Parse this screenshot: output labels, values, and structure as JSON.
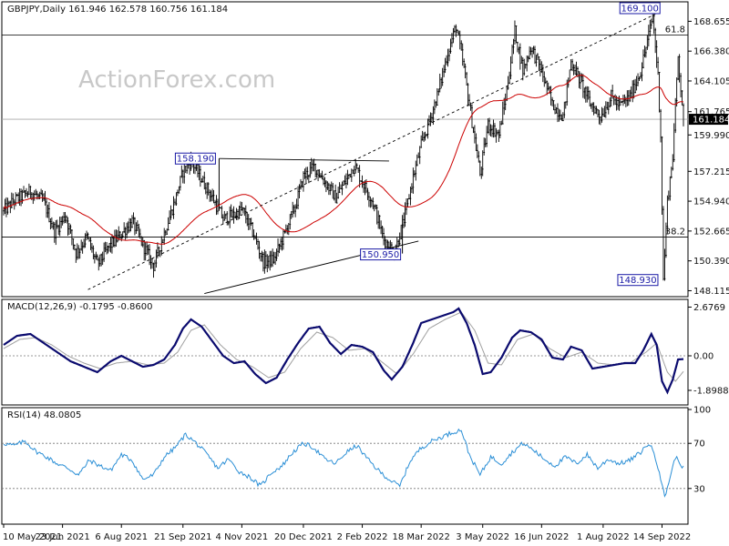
{
  "chart_data": [
    {
      "type": "candlestick",
      "title": "GBPJPY,Daily",
      "ohlc_readout": "161.946 162.578 160.756 161.184",
      "watermark": "ActionForex.com",
      "y_ticks": [
        "168.655",
        "166.380",
        "164.105",
        "161.765",
        "159.990",
        "157.215",
        "154.940",
        "152.665",
        "150.390",
        "148.115"
      ],
      "y_tick_values": [
        168.655,
        166.38,
        164.105,
        161.765,
        159.99,
        157.215,
        154.94,
        152.665,
        150.39,
        148.115
      ],
      "ylim": [
        147.8,
        170.0
      ],
      "last_price": {
        "label": "161.184",
        "value": 161.184
      },
      "x_ticks": [
        "10 May 2021",
        "23 Jun 2021",
        "6 Aug 2021",
        "21 Sep 2021",
        "4 Nov 2021",
        "20 Dec 2021",
        "2 Feb 2022",
        "18 Mar 2022",
        "3 May 2022",
        "16 Jun 2022",
        "1 Aug 2022",
        "14 Sep 2022"
      ],
      "x_tick_days": [
        0,
        44,
        88,
        134,
        178,
        224,
        268,
        312,
        358,
        402,
        448,
        492
      ],
      "x_range_days": [
        0,
        508
      ],
      "fib_levels": [
        {
          "label": "61.8",
          "value": 167.6
        },
        {
          "label": "38.2",
          "value": 152.2
        }
      ],
      "annotations": [
        {
          "label": "169.100",
          "day": 485,
          "value": 169.1
        },
        {
          "label": "158.190",
          "day": 161,
          "value": 158.19
        },
        {
          "label": "150.950",
          "day": 298,
          "value": 150.95
        },
        {
          "label": "148.930",
          "day": 493,
          "value": 148.93
        }
      ],
      "ma_series_name": "",
      "keypoints": [
        [
          0,
          154.2
        ],
        [
          8,
          155.0
        ],
        [
          20,
          155.7
        ],
        [
          30,
          154.9
        ],
        [
          38,
          152.6
        ],
        [
          46,
          153.9
        ],
        [
          54,
          151.0
        ],
        [
          62,
          152.2
        ],
        [
          70,
          150.1
        ],
        [
          78,
          151.4
        ],
        [
          88,
          152.5
        ],
        [
          96,
          153.4
        ],
        [
          104,
          151.6
        ],
        [
          112,
          150.0
        ],
        [
          120,
          152.5
        ],
        [
          128,
          155.0
        ],
        [
          134,
          157.2
        ],
        [
          140,
          158.0
        ],
        [
          148,
          156.6
        ],
        [
          156,
          155.2
        ],
        [
          164,
          153.6
        ],
        [
          172,
          153.9
        ],
        [
          178,
          154.3
        ],
        [
          186,
          152.6
        ],
        [
          194,
          150.3
        ],
        [
          202,
          150.5
        ],
        [
          210,
          152.5
        ],
        [
          218,
          154.6
        ],
        [
          224,
          156.8
        ],
        [
          232,
          157.6
        ],
        [
          240,
          156.4
        ],
        [
          248,
          155.2
        ],
        [
          256,
          156.6
        ],
        [
          262,
          157.7
        ],
        [
          268,
          156.4
        ],
        [
          276,
          154.8
        ],
        [
          284,
          152.0
        ],
        [
          292,
          151.0
        ],
        [
          300,
          153.9
        ],
        [
          306,
          156.8
        ],
        [
          312,
          159.2
        ],
        [
          318,
          161.0
        ],
        [
          324,
          163.0
        ],
        [
          332,
          166.3
        ],
        [
          338,
          168.3
        ],
        [
          344,
          165.0
        ],
        [
          350,
          161.0
        ],
        [
          356,
          157.0
        ],
        [
          362,
          160.8
        ],
        [
          370,
          160.0
        ],
        [
          376,
          163.4
        ],
        [
          382,
          167.9
        ],
        [
          388,
          164.9
        ],
        [
          394,
          166.7
        ],
        [
          402,
          164.8
        ],
        [
          410,
          162.3
        ],
        [
          418,
          161.4
        ],
        [
          424,
          165.6
        ],
        [
          430,
          164.3
        ],
        [
          438,
          162.4
        ],
        [
          446,
          161.4
        ],
        [
          454,
          162.9
        ],
        [
          460,
          162.2
        ],
        [
          468,
          162.9
        ],
        [
          476,
          164.9
        ],
        [
          482,
          167.6
        ],
        [
          485,
          169.1
        ],
        [
          489,
          164.5
        ],
        [
          491,
          160.0
        ],
        [
          493,
          148.93
        ],
        [
          496,
          154.9
        ],
        [
          500,
          158.4
        ],
        [
          504,
          166.0
        ],
        [
          508,
          161.2
        ]
      ]
    },
    {
      "type": "line",
      "title": "MACD(12,26,9) -0.1795 -0.8600",
      "y_ticks": [
        "2.6769",
        "0.00",
        "-1.8988"
      ],
      "y_tick_values": [
        2.6769,
        0.0,
        -1.8988
      ],
      "ylim": [
        -2.6,
        3.0
      ],
      "zero_label": "0.00",
      "macd_keypoints": [
        [
          0,
          0.6
        ],
        [
          10,
          1.1
        ],
        [
          20,
          1.2
        ],
        [
          30,
          0.7
        ],
        [
          40,
          0.2
        ],
        [
          50,
          -0.3
        ],
        [
          60,
          -0.6
        ],
        [
          70,
          -0.9
        ],
        [
          80,
          -0.3
        ],
        [
          88,
          0.0
        ],
        [
          96,
          -0.3
        ],
        [
          104,
          -0.6
        ],
        [
          112,
          -0.5
        ],
        [
          120,
          -0.2
        ],
        [
          128,
          0.6
        ],
        [
          134,
          1.5
        ],
        [
          140,
          2.0
        ],
        [
          148,
          1.6
        ],
        [
          156,
          0.8
        ],
        [
          164,
          0.0
        ],
        [
          172,
          -0.4
        ],
        [
          180,
          -0.3
        ],
        [
          188,
          -1.0
        ],
        [
          196,
          -1.5
        ],
        [
          204,
          -1.2
        ],
        [
          212,
          -0.2
        ],
        [
          220,
          0.7
        ],
        [
          228,
          1.5
        ],
        [
          236,
          1.6
        ],
        [
          244,
          0.7
        ],
        [
          252,
          0.1
        ],
        [
          260,
          0.6
        ],
        [
          268,
          0.5
        ],
        [
          276,
          0.2
        ],
        [
          284,
          -0.8
        ],
        [
          290,
          -1.3
        ],
        [
          298,
          -0.6
        ],
        [
          306,
          0.7
        ],
        [
          312,
          1.8
        ],
        [
          320,
          2.0
        ],
        [
          328,
          2.2
        ],
        [
          336,
          2.4
        ],
        [
          340,
          2.6
        ],
        [
          346,
          1.8
        ],
        [
          352,
          0.6
        ],
        [
          358,
          -1.0
        ],
        [
          364,
          -0.9
        ],
        [
          372,
          -0.1
        ],
        [
          380,
          1.0
        ],
        [
          386,
          1.4
        ],
        [
          394,
          1.3
        ],
        [
          402,
          0.9
        ],
        [
          410,
          -0.1
        ],
        [
          418,
          -0.2
        ],
        [
          424,
          0.5
        ],
        [
          432,
          0.3
        ],
        [
          440,
          -0.7
        ],
        [
          448,
          -0.6
        ],
        [
          456,
          -0.5
        ],
        [
          464,
          -0.4
        ],
        [
          472,
          -0.4
        ],
        [
          478,
          0.3
        ],
        [
          484,
          1.2
        ],
        [
          488,
          0.6
        ],
        [
          492,
          -1.4
        ],
        [
          496,
          -2.0
        ],
        [
          500,
          -1.3
        ],
        [
          504,
          -0.2
        ],
        [
          508,
          -0.18
        ]
      ],
      "signal_keypoints": [
        [
          0,
          0.4
        ],
        [
          12,
          0.9
        ],
        [
          24,
          1.0
        ],
        [
          36,
          0.6
        ],
        [
          48,
          0.0
        ],
        [
          60,
          -0.4
        ],
        [
          72,
          -0.7
        ],
        [
          84,
          -0.4
        ],
        [
          96,
          -0.3
        ],
        [
          108,
          -0.5
        ],
        [
          120,
          -0.4
        ],
        [
          130,
          0.2
        ],
        [
          140,
          1.4
        ],
        [
          150,
          1.7
        ],
        [
          162,
          0.6
        ],
        [
          174,
          -0.2
        ],
        [
          186,
          -0.6
        ],
        [
          198,
          -1.2
        ],
        [
          210,
          -0.9
        ],
        [
          222,
          0.4
        ],
        [
          234,
          1.3
        ],
        [
          246,
          1.0
        ],
        [
          258,
          0.3
        ],
        [
          270,
          0.4
        ],
        [
          282,
          -0.3
        ],
        [
          294,
          -1.0
        ],
        [
          306,
          0.1
        ],
        [
          318,
          1.5
        ],
        [
          330,
          2.0
        ],
        [
          342,
          2.4
        ],
        [
          352,
          1.4
        ],
        [
          362,
          -0.4
        ],
        [
          372,
          -0.5
        ],
        [
          384,
          0.9
        ],
        [
          396,
          1.2
        ],
        [
          408,
          0.4
        ],
        [
          420,
          -0.1
        ],
        [
          432,
          0.2
        ],
        [
          444,
          -0.4
        ],
        [
          456,
          -0.5
        ],
        [
          468,
          -0.4
        ],
        [
          480,
          0.2
        ],
        [
          488,
          0.7
        ],
        [
          496,
          -0.9
        ],
        [
          502,
          -1.4
        ],
        [
          508,
          -0.86
        ]
      ]
    },
    {
      "type": "line",
      "title": "RSI(14) 48.0805",
      "y_ticks": [
        "100",
        "70",
        "30"
      ],
      "y_tick_values": [
        100,
        70,
        30
      ],
      "ylim": [
        0,
        100
      ],
      "levels": [
        70,
        30
      ],
      "keypoints": [
        [
          0,
          70
        ],
        [
          8,
          68
        ],
        [
          16,
          72
        ],
        [
          24,
          63
        ],
        [
          32,
          58
        ],
        [
          40,
          52
        ],
        [
          48,
          48
        ],
        [
          56,
          42
        ],
        [
          64,
          55
        ],
        [
          72,
          50
        ],
        [
          80,
          46
        ],
        [
          88,
          60
        ],
        [
          96,
          55
        ],
        [
          104,
          38
        ],
        [
          112,
          42
        ],
        [
          120,
          58
        ],
        [
          128,
          66
        ],
        [
          136,
          78
        ],
        [
          144,
          70
        ],
        [
          152,
          60
        ],
        [
          160,
          48
        ],
        [
          168,
          56
        ],
        [
          176,
          45
        ],
        [
          184,
          40
        ],
        [
          192,
          32
        ],
        [
          200,
          44
        ],
        [
          208,
          50
        ],
        [
          216,
          62
        ],
        [
          224,
          70
        ],
        [
          232,
          66
        ],
        [
          240,
          56
        ],
        [
          248,
          52
        ],
        [
          256,
          62
        ],
        [
          264,
          68
        ],
        [
          272,
          56
        ],
        [
          280,
          46
        ],
        [
          288,
          38
        ],
        [
          296,
          32
        ],
        [
          304,
          55
        ],
        [
          312,
          66
        ],
        [
          320,
          72
        ],
        [
          328,
          76
        ],
        [
          336,
          80
        ],
        [
          342,
          82
        ],
        [
          348,
          60
        ],
        [
          356,
          42
        ],
        [
          364,
          58
        ],
        [
          372,
          52
        ],
        [
          380,
          62
        ],
        [
          388,
          70
        ],
        [
          396,
          64
        ],
        [
          404,
          56
        ],
        [
          412,
          50
        ],
        [
          420,
          58
        ],
        [
          428,
          52
        ],
        [
          436,
          60
        ],
        [
          444,
          48
        ],
        [
          452,
          56
        ],
        [
          460,
          52
        ],
        [
          468,
          55
        ],
        [
          476,
          62
        ],
        [
          482,
          70
        ],
        [
          486,
          62
        ],
        [
          490,
          45
        ],
        [
          494,
          22
        ],
        [
          498,
          40
        ],
        [
          502,
          58
        ],
        [
          506,
          52
        ],
        [
          508,
          48
        ]
      ]
    }
  ]
}
